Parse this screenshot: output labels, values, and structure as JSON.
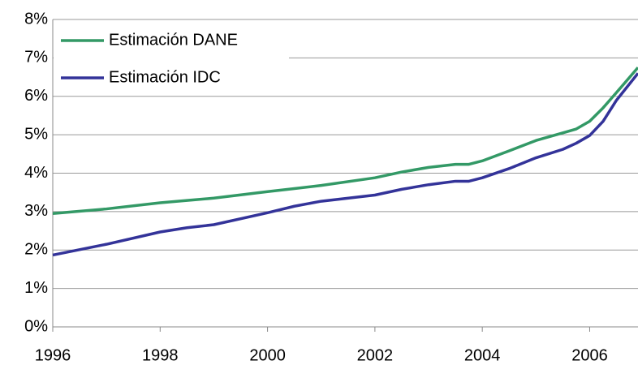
{
  "chart_data": {
    "type": "line",
    "x": [
      1996,
      1997,
      1998,
      1998.5,
      1999,
      2000,
      2000.5,
      2001,
      2002,
      2002.5,
      2003,
      2003.5,
      2003.75,
      2004,
      2004.5,
      2005,
      2005.5,
      2005.75,
      2006,
      2006.25,
      2006.5,
      2006.9
    ],
    "series": [
      {
        "name": "Estimación DANE",
        "color": "#339966",
        "values": [
          2.95,
          3.07,
          3.23,
          3.29,
          3.35,
          3.52,
          3.6,
          3.68,
          3.88,
          4.03,
          4.15,
          4.23,
          4.23,
          4.32,
          4.58,
          4.85,
          5.05,
          5.15,
          5.35,
          5.7,
          6.1,
          6.75
        ]
      },
      {
        "name": "Estimación IDC",
        "color": "#333399",
        "values": [
          1.87,
          2.15,
          2.47,
          2.58,
          2.66,
          2.97,
          3.14,
          3.27,
          3.43,
          3.58,
          3.7,
          3.79,
          3.79,
          3.88,
          4.12,
          4.4,
          4.62,
          4.78,
          4.98,
          5.35,
          5.9,
          6.6
        ]
      }
    ],
    "xlim": [
      1996,
      2006.9
    ],
    "xticks": [
      1996,
      1998,
      2000,
      2002,
      2004,
      2006
    ],
    "ylim": [
      0,
      8
    ],
    "yticks": [
      {
        "value": 0,
        "label": "0%"
      },
      {
        "value": 1,
        "label": "1%"
      },
      {
        "value": 2,
        "label": "2%"
      },
      {
        "value": 3,
        "label": "3%"
      },
      {
        "value": 4,
        "label": "4%"
      },
      {
        "value": 5,
        "label": "5%"
      },
      {
        "value": 6,
        "label": "6%"
      },
      {
        "value": 7,
        "label": "7%"
      },
      {
        "value": 8,
        "label": "8%"
      }
    ],
    "grid": true,
    "legend": "upper left"
  }
}
